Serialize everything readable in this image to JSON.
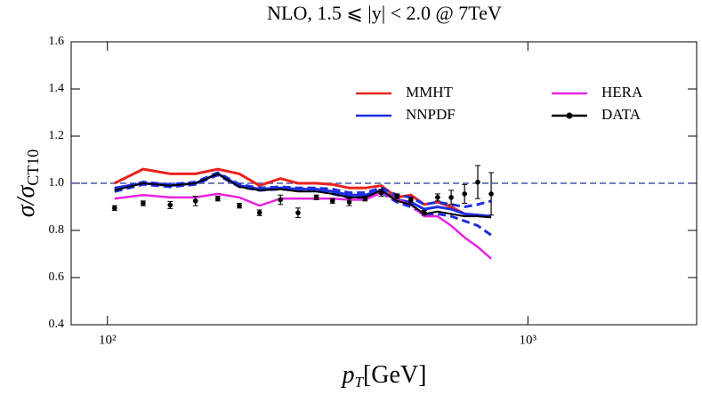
{
  "chart_data": {
    "type": "line",
    "title": "NLO, 1.5 ⩽ |y| < 2.0 @ 7TeV",
    "ylabel": {
      "main": "σ/σ",
      "sub": "CT10"
    },
    "xlabel": {
      "main": "p",
      "sub": "T",
      "unit": "[GeV]"
    },
    "xscale": "log",
    "xlim": [
      82,
      2520
    ],
    "ylim": [
      0.4,
      1.6
    ],
    "xticks": [
      {
        "value": 100,
        "label": "10²"
      },
      {
        "value": 1000,
        "label": "10³"
      }
    ],
    "yticks": [
      0.4,
      0.6,
      0.8,
      {
        "value": 1,
        "label": "1.0"
      },
      1.2,
      1.4,
      1.6
    ],
    "reference_line": 1,
    "x": [
      104,
      121.6,
      141,
      162,
      183,
      206,
      230,
      258,
      284,
      314,
      343,
      376,
      410,
      448,
      488,
      527,
      567,
      610,
      657,
      707,
      760,
      818
    ],
    "series": [
      {
        "name": "MMHT",
        "color": "#e8231c",
        "values": [
          1.0,
          1.06,
          1.04,
          1.04,
          1.06,
          1.04,
          0.99,
          1.02,
          1.0,
          1.0,
          0.995,
          0.98,
          0.98,
          0.99,
          0.94,
          0.95,
          0.91,
          0.92,
          0.9,
          0.87,
          0.865,
          0.86
        ]
      },
      {
        "name": "NNPDF",
        "color": "#1c2fe0",
        "values": [
          0.98,
          1.0,
          0.99,
          1.0,
          1.04,
          0.99,
          0.975,
          0.98,
          0.975,
          0.975,
          0.965,
          0.95,
          0.95,
          0.97,
          0.93,
          0.92,
          0.89,
          0.9,
          0.89,
          0.87,
          0.865,
          0.86
        ],
        "band_upper": [
          0.975,
          1.005,
          0.995,
          1.005,
          1.045,
          0.995,
          0.98,
          0.985,
          0.98,
          0.98,
          0.975,
          0.96,
          0.96,
          0.98,
          0.95,
          0.94,
          0.91,
          0.92,
          0.91,
          0.9,
          0.91,
          0.925
        ],
        "band_lower": [
          0.965,
          0.995,
          0.985,
          0.995,
          1.035,
          0.985,
          0.97,
          0.975,
          0.97,
          0.97,
          0.955,
          0.94,
          0.94,
          0.96,
          0.92,
          0.9,
          0.87,
          0.87,
          0.86,
          0.84,
          0.82,
          0.78
        ]
      },
      {
        "name": "HERA",
        "color": "#e822e0",
        "values": [
          0.935,
          0.95,
          0.94,
          0.94,
          0.955,
          0.94,
          0.905,
          0.935,
          0.935,
          0.935,
          0.935,
          0.93,
          0.93,
          0.96,
          0.93,
          0.91,
          0.86,
          0.86,
          0.82,
          0.77,
          0.73,
          0.68
        ]
      },
      {
        "name": "DATA",
        "color": "#000000",
        "values": [
          0.895,
          0.915,
          0.908,
          0.925,
          0.935,
          0.905,
          0.875,
          0.93,
          0.875,
          0.94,
          0.925,
          0.92,
          0.935,
          0.96,
          0.945,
          0.93,
          0.875,
          0.94,
          0.94,
          0.955,
          1.005,
          0.955
        ],
        "errors": [
          0.01,
          0.01,
          0.015,
          0.02,
          0.01,
          0.01,
          0.012,
          0.02,
          0.02,
          0.01,
          0.01,
          0.015,
          0.01,
          0.015,
          0.01,
          0.01,
          0.01,
          0.015,
          0.03,
          0.04,
          0.07,
          0.09
        ],
        "curve": [
          0.97,
          1.0,
          0.99,
          1.0,
          1.04,
          0.985,
          0.97,
          0.975,
          0.965,
          0.965,
          0.955,
          0.94,
          0.94,
          0.97,
          0.925,
          0.91,
          0.87,
          0.88,
          0.87,
          0.86,
          0.86,
          0.855
        ]
      }
    ]
  }
}
